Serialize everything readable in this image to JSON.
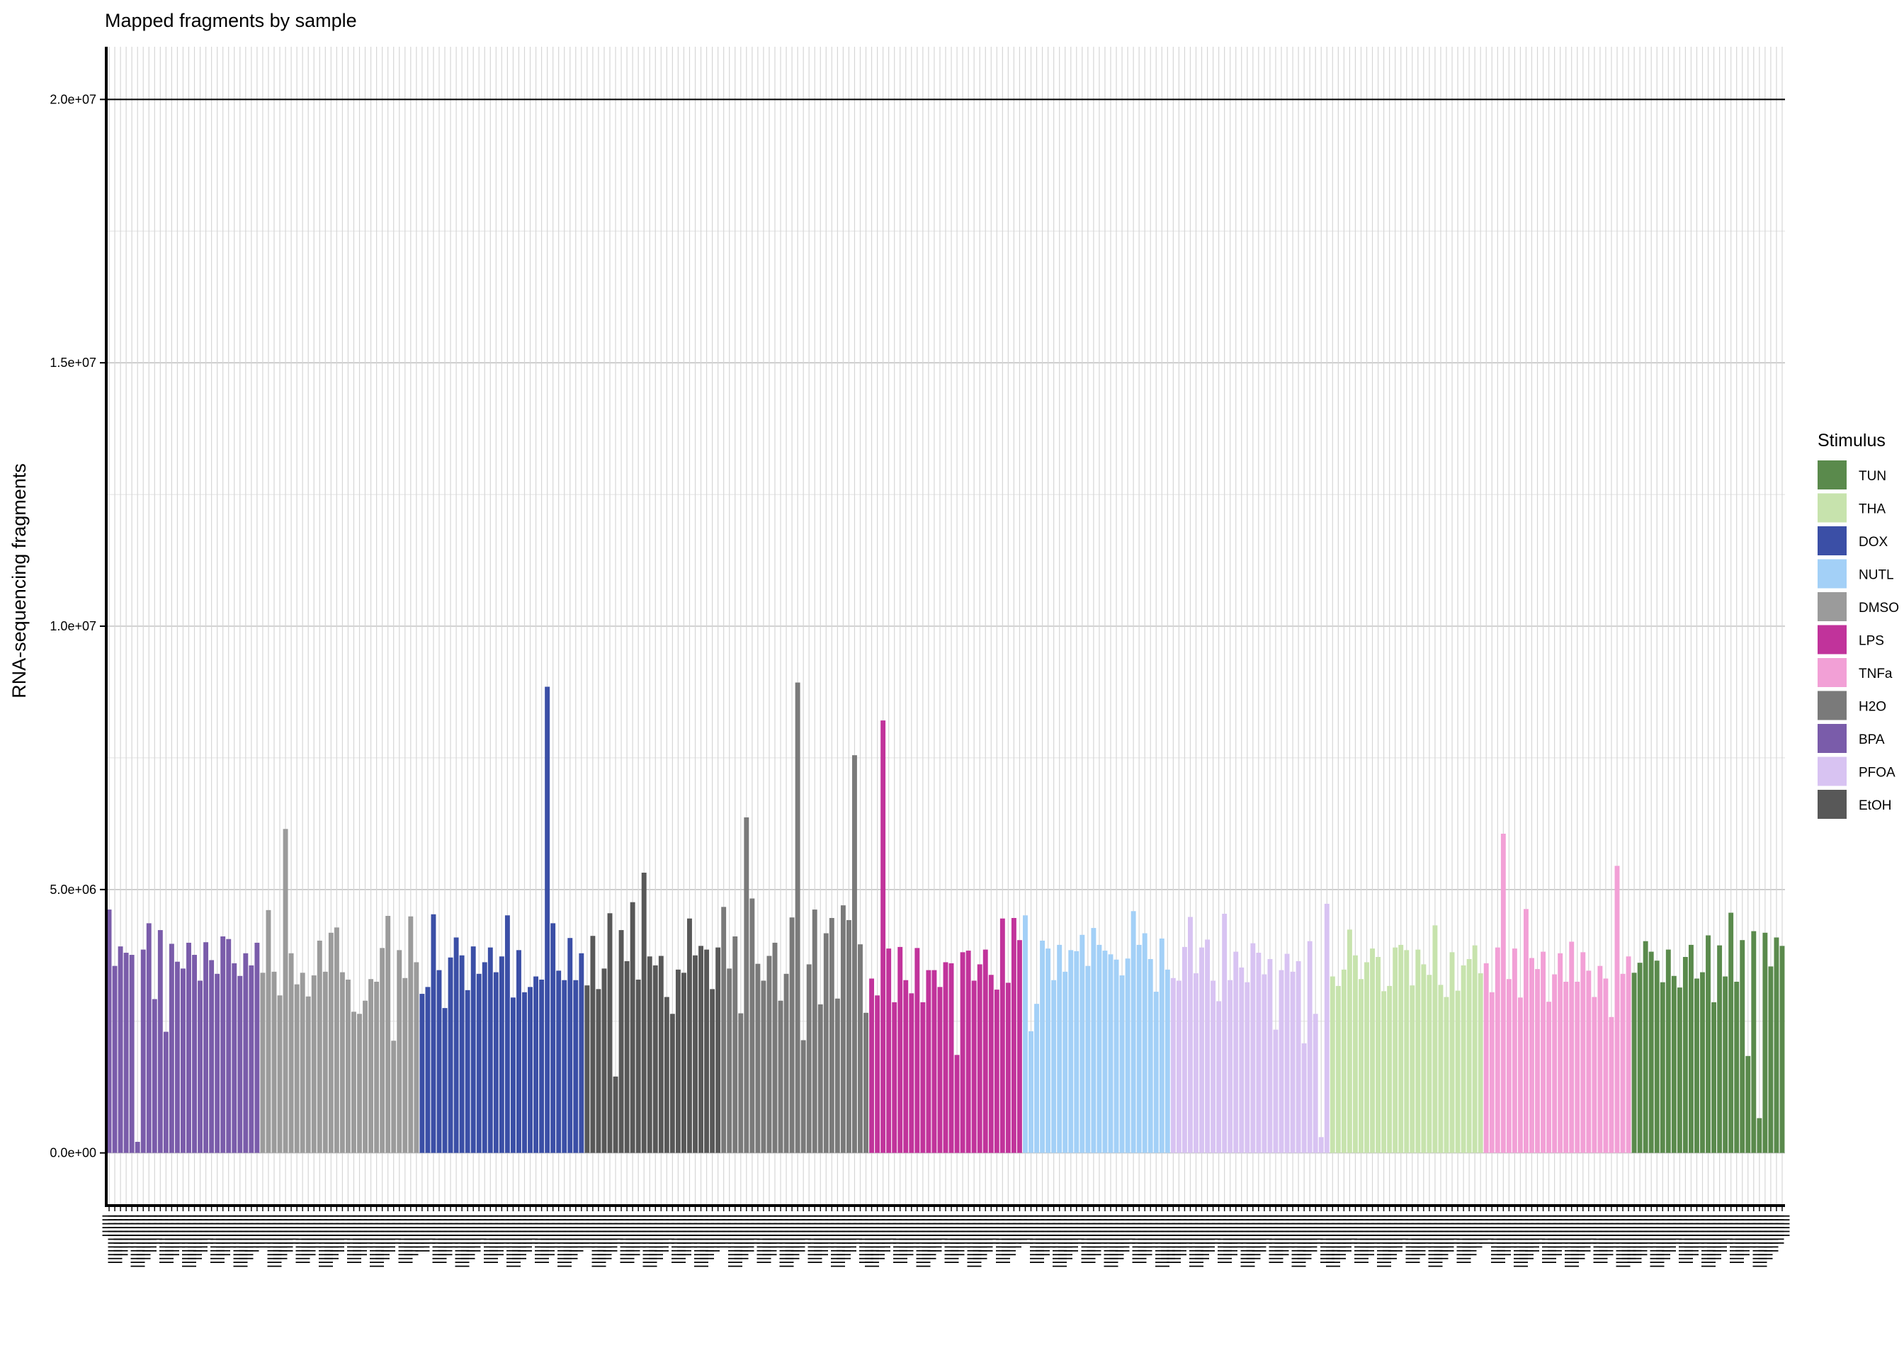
{
  "chart_data": {
    "type": "bar",
    "title": "Mapped fragments by sample",
    "xlabel": "",
    "ylabel": "RNA-sequencing fragments",
    "ylim": [
      -1000000,
      21000000
    ],
    "yticks": [
      {
        "value": 0,
        "label": "0.0e+00"
      },
      {
        "value": 5000000,
        "label": "5.0e+06"
      },
      {
        "value": 10000000,
        "label": "1.0e+07"
      },
      {
        "value": 15000000,
        "label": "1.5e+07"
      },
      {
        "value": 20000000,
        "label": "2.0e+07"
      }
    ],
    "reference_line": 20000000,
    "grid": true,
    "legend": {
      "title": "Stimulus",
      "position": "right",
      "items": [
        {
          "name": "TUN",
          "color": "#5a8a4c"
        },
        {
          "name": "THA",
          "color": "#c7e3ad"
        },
        {
          "name": "DOX",
          "color": "#3b4fa6"
        },
        {
          "name": "NUTL",
          "color": "#a3d0f7"
        },
        {
          "name": "DMSO",
          "color": "#9b9b9b"
        },
        {
          "name": "LPS",
          "color": "#c1339b"
        },
        {
          "name": "TNFa",
          "color": "#f2a0d6"
        },
        {
          "name": "H2O",
          "color": "#7a7a7a"
        },
        {
          "name": "BPA",
          "color": "#7a5caa"
        },
        {
          "name": "PFOA",
          "color": "#d8c3f2"
        },
        {
          "name": "EtOH",
          "color": "#585858"
        }
      ]
    },
    "groups": [
      {
        "stimulus": "BPA",
        "values": [
          4620000,
          3550000,
          3920000,
          3800000,
          3760000,
          210000,
          3860000,
          4360000,
          2920000,
          4230000,
          2300000,
          3970000,
          3630000,
          3500000,
          3990000,
          3760000,
          3270000,
          4000000,
          3660000,
          3400000,
          4110000,
          4060000,
          3600000,
          3360000,
          3790000,
          3560000,
          3990000
        ]
      },
      {
        "stimulus": "DMSO",
        "values": [
          3420000,
          4610000,
          3440000,
          2990000,
          6150000,
          3790000,
          3200000,
          3420000,
          2970000,
          3370000,
          4030000,
          3440000,
          4180000,
          4280000,
          3430000,
          3290000,
          2680000,
          2640000,
          2890000,
          3300000,
          3250000,
          3890000,
          4500000,
          2130000,
          3850000,
          3320000,
          4490000,
          3620000
        ]
      },
      {
        "stimulus": "DOX",
        "values": [
          3020000,
          3150000,
          4530000,
          3470000,
          2750000,
          3710000,
          4090000,
          3750000,
          3090000,
          3920000,
          3400000,
          3620000,
          3900000,
          3430000,
          3730000,
          4510000,
          2950000,
          3850000,
          3050000,
          3150000,
          3350000,
          3290000,
          8850000,
          4360000,
          3460000,
          3280000,
          4080000,
          3280000,
          3790000
        ]
      },
      {
        "stimulus": "EtOH",
        "values": [
          3180000,
          4120000,
          3110000,
          3500000,
          4550000,
          1450000,
          4230000,
          3640000,
          4760000,
          3290000,
          5320000,
          3730000,
          3560000,
          3740000,
          2960000,
          2640000,
          3480000,
          3420000,
          4450000,
          3750000,
          3930000,
          3860000,
          3110000,
          3900000
        ]
      },
      {
        "stimulus": "H2O",
        "values": [
          4670000,
          3500000,
          4110000,
          2650000,
          6370000,
          4830000,
          3590000,
          3270000,
          3740000,
          3990000,
          2890000,
          3400000,
          4470000,
          8930000,
          2140000,
          3580000,
          4620000,
          2820000,
          4170000,
          4460000,
          2930000,
          4700000,
          4420000,
          7550000,
          3960000,
          2660000
        ]
      },
      {
        "stimulus": "LPS",
        "values": [
          3310000,
          2990000,
          8210000,
          3880000,
          2860000,
          3910000,
          3280000,
          3030000,
          3890000,
          2860000,
          3470000,
          3470000,
          3150000,
          3620000,
          3600000,
          1860000,
          3810000,
          3840000,
          3270000,
          3580000,
          3860000,
          3380000,
          3100000,
          4450000,
          3230000,
          4460000,
          4040000
        ]
      },
      {
        "stimulus": "NUTL",
        "values": [
          4510000,
          2310000,
          2830000,
          4030000,
          3880000,
          3280000,
          3950000,
          3440000,
          3850000,
          3830000,
          4140000,
          3550000,
          4270000,
          3950000,
          3840000,
          3770000,
          3670000,
          3370000,
          3690000,
          4590000,
          3950000,
          4170000,
          3680000,
          3060000,
          4070000,
          3480000
        ]
      },
      {
        "stimulus": "PFOA",
        "values": [
          3320000,
          3270000,
          3910000,
          4480000,
          3410000,
          3900000,
          4050000,
          3270000,
          2880000,
          4540000,
          3280000,
          3820000,
          3520000,
          3240000,
          3980000,
          3800000,
          3390000,
          3680000,
          2340000,
          3470000,
          3780000,
          3440000,
          3640000,
          2080000,
          4020000,
          2640000,
          300000,
          4730000
        ]
      },
      {
        "stimulus": "THA",
        "values": [
          3350000,
          3170000,
          3480000,
          4240000,
          3750000,
          3300000,
          3620000,
          3880000,
          3720000,
          3070000,
          3170000,
          3900000,
          3950000,
          3850000,
          3180000,
          3860000,
          3580000,
          3380000,
          4320000,
          3190000,
          2960000,
          3810000,
          3080000,
          3560000,
          3680000,
          3940000,
          3410000
        ]
      },
      {
        "stimulus": "TNFa",
        "values": [
          3600000,
          3050000,
          3900000,
          6060000,
          3300000,
          3880000,
          2950000,
          4630000,
          3700000,
          3490000,
          3820000,
          2870000,
          3390000,
          3790000,
          3250000,
          4010000,
          3250000,
          3810000,
          3460000,
          2960000,
          3550000,
          3310000,
          2580000,
          5450000,
          3400000,
          3730000
        ]
      },
      {
        "stimulus": "TUN",
        "values": [
          3420000,
          3610000,
          4020000,
          3820000,
          3650000,
          3240000,
          3860000,
          3360000,
          3140000,
          3720000,
          3950000,
          3310000,
          3430000,
          4130000,
          2860000,
          3940000,
          3350000,
          4560000,
          3250000,
          4040000,
          1840000,
          4210000,
          660000,
          4180000,
          3540000,
          4090000,
          3930000
        ]
      }
    ],
    "x_tick_label": "||||||||||||||"
  }
}
